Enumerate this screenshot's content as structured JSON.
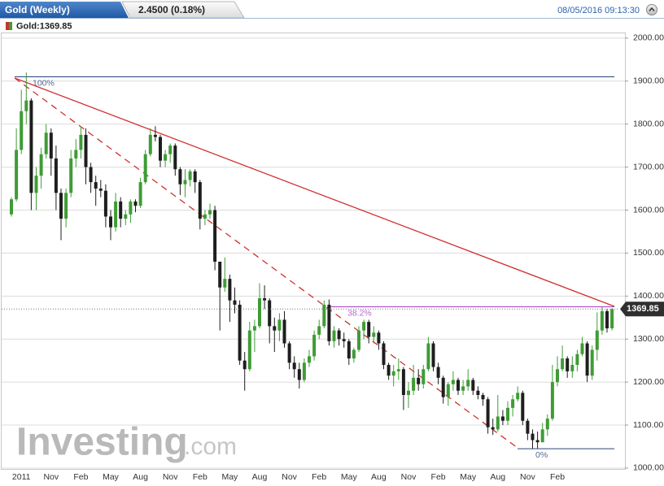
{
  "header": {
    "title": "Gold (Weekly)",
    "change": "2.4500 (0.18%)",
    "timestamp": "08/05/2016 09:13:30",
    "legend": "Gold:1369.85"
  },
  "chart_data": {
    "type": "candlestick",
    "categories": [
      null,
      null,
      "2011",
      null,
      null,
      null,
      null,
      null,
      "Nov",
      null,
      null,
      null,
      null,
      null,
      "Feb",
      null,
      null,
      null,
      null,
      null,
      "May",
      null,
      null,
      null,
      null,
      null,
      "Aug",
      null,
      null,
      null,
      null,
      null,
      "Nov",
      null,
      null,
      null,
      null,
      null,
      "Feb",
      null,
      null,
      null,
      null,
      null,
      "May",
      null,
      null,
      null,
      null,
      null,
      "Aug",
      null,
      null,
      null,
      null,
      null,
      "Nov",
      null,
      null,
      null,
      null,
      null,
      "Feb",
      null,
      null,
      null,
      null,
      null,
      "May",
      null,
      null,
      null,
      null,
      null,
      "Aug",
      null,
      null,
      null,
      null,
      null,
      "Nov",
      null,
      null,
      null,
      null,
      null,
      "Feb",
      null,
      null,
      null,
      null,
      null,
      "May",
      null,
      null,
      null,
      null,
      null,
      "Aug",
      null,
      null,
      null,
      null,
      null,
      "Nov",
      null,
      null,
      null,
      null,
      null,
      "Feb",
      null,
      null,
      null,
      null,
      null,
      null,
      null,
      null,
      null,
      null,
      null
    ],
    "open": [
      1590,
      1625,
      1740,
      1830,
      1855,
      1640,
      1680,
      1730,
      1780,
      1720,
      1640,
      1580,
      1640,
      1720,
      1740,
      1775,
      1700,
      1665,
      1650,
      1645,
      1585,
      1560,
      1620,
      1580,
      1590,
      1620,
      1610,
      1665,
      1730,
      1775,
      1770,
      1715,
      1730,
      1750,
      1695,
      1660,
      1670,
      1690,
      1665,
      1580,
      1590,
      1600,
      1480,
      1420,
      1440,
      1390,
      1380,
      1250,
      1230,
      1320,
      1330,
      1395,
      1390,
      1330,
      1320,
      1345,
      1290,
      1245,
      1230,
      1205,
      1245,
      1260,
      1310,
      1330,
      1380,
      1295,
      1320,
      1300,
      1295,
      1255,
      1275,
      1320,
      1340,
      1305,
      1315,
      1290,
      1240,
      1215,
      1225,
      1230,
      1170,
      1180,
      1210,
      1195,
      1230,
      1290,
      1235,
      1210,
      1165,
      1195,
      1205,
      1180,
      1190,
      1205,
      1180,
      1170,
      1160,
      1095,
      1090,
      1120,
      1110,
      1140,
      1160,
      1175,
      1110,
      1080,
      1065,
      1060,
      1090,
      1115,
      1200,
      1230,
      1255,
      1225,
      1240,
      1265,
      1290,
      1215,
      1275,
      1320,
      1365,
      1325
    ],
    "high": [
      1630,
      1790,
      1880,
      1920,
      1860,
      1700,
      1745,
      1800,
      1790,
      1750,
      1650,
      1650,
      1740,
      1765,
      1795,
      1790,
      1710,
      1680,
      1670,
      1660,
      1600,
      1640,
      1630,
      1600,
      1625,
      1625,
      1675,
      1740,
      1790,
      1795,
      1775,
      1740,
      1755,
      1755,
      1700,
      1695,
      1695,
      1695,
      1670,
      1600,
      1615,
      1610,
      1480,
      1490,
      1450,
      1420,
      1390,
      1270,
      1340,
      1345,
      1430,
      1425,
      1395,
      1350,
      1360,
      1365,
      1295,
      1260,
      1245,
      1255,
      1275,
      1320,
      1345,
      1390,
      1392,
      1330,
      1325,
      1315,
      1300,
      1280,
      1330,
      1345,
      1345,
      1330,
      1320,
      1295,
      1245,
      1240,
      1255,
      1235,
      1200,
      1240,
      1230,
      1240,
      1305,
      1295,
      1245,
      1215,
      1200,
      1225,
      1210,
      1205,
      1230,
      1210,
      1190,
      1175,
      1165,
      1115,
      1170,
      1135,
      1155,
      1170,
      1190,
      1180,
      1115,
      1090,
      1085,
      1105,
      1125,
      1240,
      1260,
      1285,
      1260,
      1260,
      1275,
      1305,
      1295,
      1285,
      1362,
      1375,
      1370,
      1372
    ],
    "low": [
      1585,
      1620,
      1730,
      1800,
      1600,
      1600,
      1650,
      1720,
      1680,
      1600,
      1530,
      1560,
      1630,
      1700,
      1720,
      1660,
      1640,
      1610,
      1630,
      1560,
      1530,
      1550,
      1560,
      1565,
      1570,
      1595,
      1605,
      1660,
      1725,
      1760,
      1700,
      1700,
      1710,
      1680,
      1635,
      1630,
      1655,
      1640,
      1555,
      1565,
      1580,
      1460,
      1320,
      1410,
      1340,
      1360,
      1240,
      1180,
      1225,
      1270,
      1325,
      1370,
      1290,
      1270,
      1295,
      1280,
      1230,
      1210,
      1185,
      1200,
      1235,
      1250,
      1300,
      1325,
      1285,
      1280,
      1285,
      1280,
      1240,
      1245,
      1270,
      1300,
      1290,
      1290,
      1275,
      1230,
      1205,
      1190,
      1205,
      1135,
      1140,
      1170,
      1180,
      1185,
      1225,
      1225,
      1195,
      1150,
      1145,
      1180,
      1170,
      1170,
      1180,
      1170,
      1160,
      1145,
      1080,
      1077,
      1085,
      1100,
      1100,
      1120,
      1155,
      1100,
      1065,
      1045,
      1046,
      1060,
      1075,
      1110,
      1190,
      1225,
      1210,
      1210,
      1225,
      1260,
      1200,
      1205,
      1250,
      1310,
      1315,
      1320
    ],
    "close": [
      1625,
      1740,
      1830,
      1855,
      1640,
      1680,
      1730,
      1780,
      1720,
      1640,
      1580,
      1640,
      1720,
      1740,
      1775,
      1700,
      1665,
      1650,
      1645,
      1585,
      1560,
      1620,
      1580,
      1590,
      1620,
      1610,
      1665,
      1730,
      1775,
      1770,
      1715,
      1730,
      1750,
      1695,
      1660,
      1670,
      1690,
      1665,
      1580,
      1590,
      1600,
      1480,
      1420,
      1440,
      1390,
      1380,
      1250,
      1230,
      1320,
      1330,
      1395,
      1390,
      1330,
      1320,
      1345,
      1290,
      1245,
      1230,
      1205,
      1245,
      1260,
      1310,
      1330,
      1380,
      1295,
      1320,
      1300,
      1295,
      1255,
      1275,
      1320,
      1340,
      1305,
      1315,
      1290,
      1240,
      1215,
      1225,
      1230,
      1170,
      1180,
      1210,
      1195,
      1230,
      1290,
      1235,
      1210,
      1165,
      1195,
      1205,
      1180,
      1190,
      1205,
      1180,
      1170,
      1160,
      1095,
      1090,
      1120,
      1110,
      1140,
      1160,
      1175,
      1110,
      1080,
      1065,
      1060,
      1090,
      1115,
      1200,
      1230,
      1255,
      1225,
      1240,
      1265,
      1290,
      1215,
      1275,
      1320,
      1365,
      1325,
      1369.85
    ],
    "up_color": "#3f9c35",
    "down_color": "#1e1e1e",
    "ylim": [
      998,
      2013
    ],
    "yticks": [
      {
        "value": 1000,
        "label": "1000.00"
      },
      {
        "value": 1100,
        "label": "1100.00"
      },
      {
        "value": 1200,
        "label": "1200.00"
      },
      {
        "value": 1300,
        "label": "1300.00"
      },
      {
        "value": 1400,
        "label": "1400.00"
      },
      {
        "value": 1500,
        "label": "1500.00"
      },
      {
        "value": 1600,
        "label": "1600.00"
      },
      {
        "value": 1700,
        "label": "1700.00"
      },
      {
        "value": 1800,
        "label": "1800.00"
      },
      {
        "value": 1900,
        "label": "1900.00"
      },
      {
        "value": 2000,
        "label": "2000.00"
      }
    ],
    "grid": true,
    "levels": [
      {
        "value": 1910,
        "label": "100%",
        "color": "#2a4379"
      },
      {
        "value": 1375,
        "label": "38.2%",
        "color": "#a23fc4"
      },
      {
        "value": 1045,
        "label": "0%",
        "color": "#2a4379"
      }
    ],
    "last_price": {
      "value": 1369.85,
      "label": "1369.85"
    },
    "watermark": {
      "main": "Investing",
      "suffix": ".com"
    }
  }
}
